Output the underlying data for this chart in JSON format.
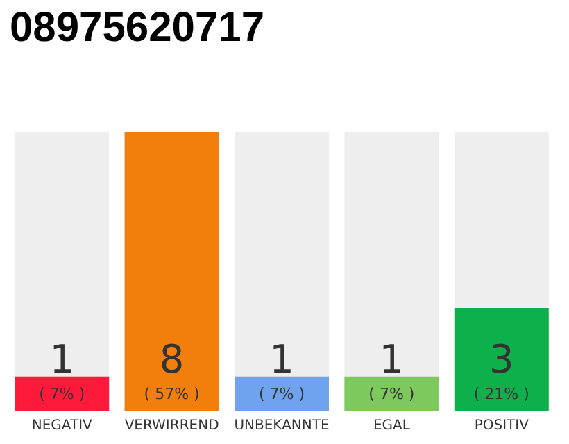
{
  "chart_data": {
    "type": "bar",
    "title": "08975620717",
    "categories": [
      "NEGATIV",
      "VERWIRREND",
      "UNBEKANNTE",
      "EGAL",
      "POSITIV"
    ],
    "values": [
      7,
      57,
      7,
      7,
      21
    ],
    "colors": [
      "#ff1a3c",
      "#f27f0c",
      "#6fa3f0",
      "#7dc95e",
      "#0db04b"
    ],
    "value_labels": [
      "1\n( 7% )",
      "8\n( 57% )",
      "1\n( 7% )",
      "1\n( 7% )",
      "3\n( 21% )"
    ],
    "tick_labels": "x",
    "grid": false
  }
}
